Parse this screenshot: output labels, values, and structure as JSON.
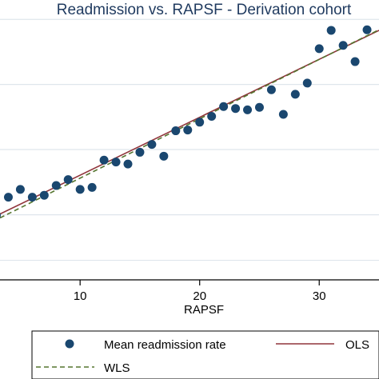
{
  "colors": {
    "background": "#ffffff",
    "title": "#1f3a5f",
    "grid": "#dfe6ec",
    "point": "#1a476f",
    "ols": "#90353b",
    "wls": "#55752f",
    "axis": "#000000"
  },
  "chart_data": {
    "type": "scatter",
    "title": "Readmission vs. RAPSF - Derivation cohort",
    "xlabel": "RAPSF",
    "ylabel": "",
    "xlim": [
      3.3,
      35
    ],
    "ylim": [
      0.0,
      0.133
    ],
    "xticks": [
      10,
      20,
      30
    ],
    "yticks": [
      0.01,
      0.0333,
      0.0667,
      0.1,
      0.1333
    ],
    "grid": true,
    "legend_position": "bottom",
    "series": [
      {
        "name": "Mean readmission rate",
        "kind": "points",
        "x": [
          3,
          4,
          5,
          6,
          7,
          8,
          9,
          10,
          11,
          12,
          13,
          14,
          15,
          16,
          17,
          18,
          19,
          20,
          21,
          22,
          23,
          24,
          25,
          26,
          27,
          28,
          29,
          30,
          31,
          32,
          33,
          34
        ],
        "y": [
          0.033,
          0.0423,
          0.0463,
          0.0423,
          0.0433,
          0.0483,
          0.0513,
          0.0463,
          0.0473,
          0.0613,
          0.0603,
          0.0593,
          0.0653,
          0.0693,
          0.0633,
          0.0763,
          0.0767,
          0.0807,
          0.0837,
          0.0887,
          0.0877,
          0.087,
          0.0883,
          0.0973,
          0.0847,
          0.095,
          0.1007,
          0.1183,
          0.1277,
          0.12,
          0.1117,
          0.128
        ]
      },
      {
        "name": "OLS",
        "kind": "line",
        "x": [
          3.3,
          35
        ],
        "y": [
          0.0337,
          0.1277
        ]
      },
      {
        "name": "WLS",
        "kind": "dashed",
        "x": [
          3.3,
          35
        ],
        "y": [
          0.0317,
          0.128
        ]
      }
    ]
  },
  "legend": {
    "items": [
      {
        "label": "Mean readmission rate",
        "kind": "point"
      },
      {
        "label": "OLS",
        "kind": "line"
      },
      {
        "label": "WLS",
        "kind": "dashed"
      }
    ]
  }
}
